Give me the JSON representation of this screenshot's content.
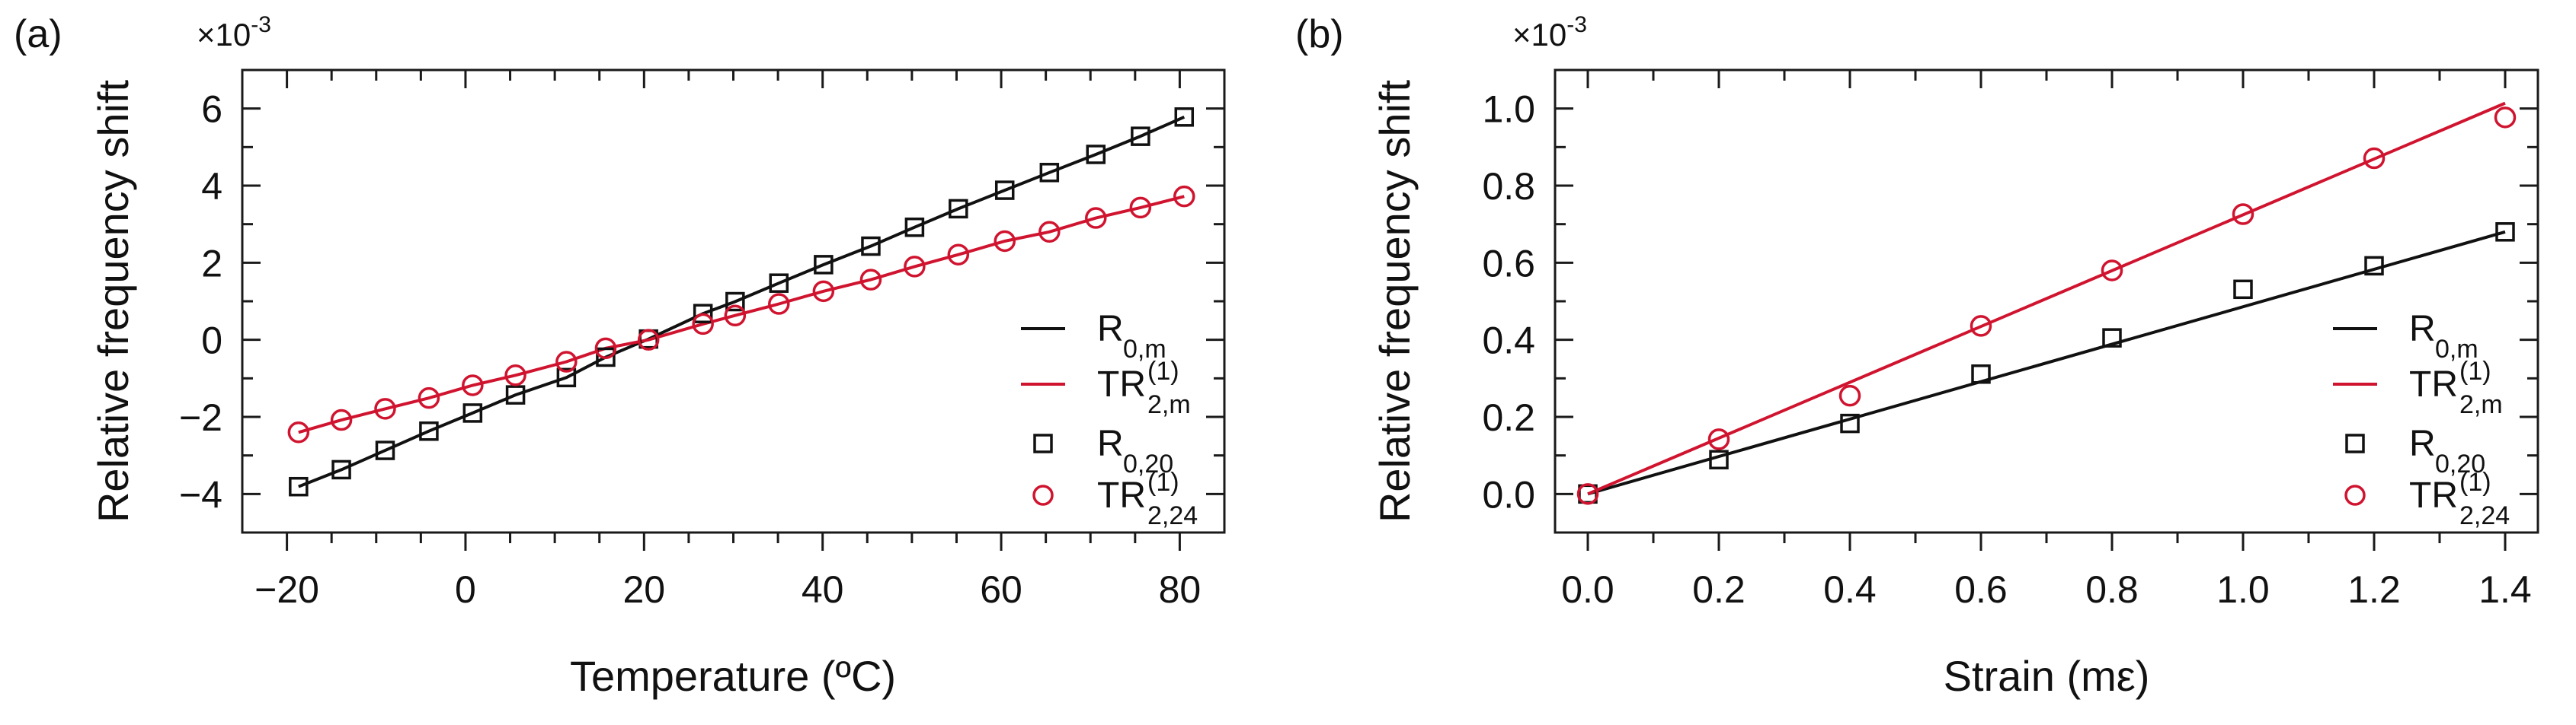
{
  "colors": {
    "black": "#111111",
    "red": "#d0142f",
    "axis": "#1a1a1a"
  },
  "chart_data": [
    {
      "panel": "(a)",
      "type": "scatter",
      "title": "",
      "xlabel": "Temperature (ºC)",
      "ylabel": "Relative frequency shift",
      "y_multiplier": "×10",
      "y_multiplier_exp": "-3",
      "xlim": [
        -25,
        85
      ],
      "ylim": [
        -5,
        7
      ],
      "xticks": [
        -20,
        0,
        20,
        40,
        60,
        80
      ],
      "xtick_labels": [
        "−20",
        "0",
        "20",
        "40",
        "60",
        "80"
      ],
      "x_minor_step": 5,
      "yticks": [
        -4,
        -2,
        0,
        2,
        4,
        6
      ],
      "ytick_labels": [
        "−4",
        "−2",
        "0",
        "2",
        "4",
        "6"
      ],
      "y_minor_step": 1,
      "grid": false,
      "legend_position": "bottom-right",
      "x": [
        -18.7,
        -13.9,
        -9.0,
        -4.1,
        0.8,
        5.6,
        11.3,
        15.7,
        20.5,
        26.6,
        30.2,
        35.1,
        40.1,
        45.4,
        50.3,
        55.2,
        60.4,
        65.4,
        70.6,
        75.6,
        80.5
      ],
      "series": [
        {
          "name": "R_0,m",
          "label_main": "R",
          "label_sub": "0,m",
          "label_sup": "",
          "kind": "line",
          "color": "#111111",
          "values": [
            -3.81,
            -3.37,
            -2.87,
            -2.37,
            -1.9,
            -1.43,
            -0.98,
            -0.45,
            0.02,
            0.68,
            0.99,
            1.47,
            1.95,
            2.43,
            2.92,
            3.4,
            3.88,
            4.34,
            4.81,
            5.28,
            5.78
          ]
        },
        {
          "name": "TR_2,m^(1)",
          "label_main": "TR",
          "label_sub": "2,m",
          "label_sup": "(1)",
          "kind": "line",
          "color": "#d0142f",
          "values": [
            -2.4,
            -2.08,
            -1.79,
            -1.51,
            -1.18,
            -0.92,
            -0.57,
            -0.22,
            0.0,
            0.41,
            0.63,
            0.93,
            1.26,
            1.56,
            1.9,
            2.21,
            2.56,
            2.8,
            3.16,
            3.43,
            3.72
          ]
        },
        {
          "name": "R_0,20",
          "label_main": "R",
          "label_sub": "0,20",
          "label_sup": "",
          "kind": "square",
          "color": "#111111",
          "values": [
            -3.81,
            -3.37,
            -2.87,
            -2.37,
            -1.9,
            -1.43,
            -0.98,
            -0.45,
            0.02,
            0.68,
            0.99,
            1.47,
            1.95,
            2.43,
            2.92,
            3.4,
            3.88,
            4.34,
            4.81,
            5.28,
            5.78
          ]
        },
        {
          "name": "TR_2,24^(1)",
          "label_main": "TR",
          "label_sub": "2,24",
          "label_sup": "(1)",
          "kind": "circle",
          "color": "#d0142f",
          "values": [
            -2.4,
            -2.08,
            -1.79,
            -1.51,
            -1.18,
            -0.92,
            -0.57,
            -0.22,
            0.0,
            0.41,
            0.63,
            0.93,
            1.26,
            1.56,
            1.9,
            2.21,
            2.56,
            2.8,
            3.16,
            3.43,
            3.72
          ]
        }
      ]
    },
    {
      "panel": "(b)",
      "type": "scatter",
      "title": "",
      "xlabel": "Strain (mε)",
      "ylabel": "Relative frequency shift",
      "y_multiplier": "×10",
      "y_multiplier_exp": "-3",
      "xlim": [
        -0.05,
        1.45
      ],
      "ylim": [
        -0.1,
        1.1
      ],
      "xticks": [
        0.0,
        0.2,
        0.4,
        0.6,
        0.8,
        1.0,
        1.2,
        1.4
      ],
      "xtick_labels": [
        "0.0",
        "0.2",
        "0.4",
        "0.6",
        "0.8",
        "1.0",
        "1.2",
        "1.4"
      ],
      "x_minor_step": 0.1,
      "yticks": [
        0.0,
        0.2,
        0.4,
        0.6,
        0.8,
        1.0
      ],
      "ytick_labels": [
        "0.0",
        "0.2",
        "0.4",
        "0.6",
        "0.8",
        "1.0"
      ],
      "y_minor_step": 0.1,
      "grid": false,
      "legend_position": "bottom-right",
      "x": [
        0.0,
        0.2,
        0.4,
        0.6,
        0.8,
        1.0,
        1.2,
        1.4
      ],
      "series": [
        {
          "name": "R_0,m",
          "label_main": "R",
          "label_sub": "0,m",
          "label_sup": "",
          "kind": "line",
          "color": "#111111",
          "line_x": [
            0.0,
            1.4
          ],
          "line_values": [
            0.0,
            0.68
          ]
        },
        {
          "name": "TR_2,m^(1)",
          "label_main": "TR",
          "label_sub": "2,m",
          "label_sup": "(1)",
          "kind": "line",
          "color": "#d0142f",
          "line_x": [
            0.0,
            1.4
          ],
          "line_values": [
            0.0,
            1.014
          ]
        },
        {
          "name": "R_0,20",
          "label_main": "R",
          "label_sub": "0,20",
          "label_sup": "",
          "kind": "square",
          "color": "#111111",
          "values": [
            0.0,
            0.089,
            0.183,
            0.311,
            0.405,
            0.531,
            0.592,
            0.68
          ]
        },
        {
          "name": "TR_2,24^(1)",
          "label_main": "TR",
          "label_sub": "2,24",
          "label_sup": "(1)",
          "kind": "circle",
          "color": "#d0142f",
          "values": [
            0.0,
            0.142,
            0.255,
            0.436,
            0.58,
            0.726,
            0.871,
            0.977
          ]
        }
      ]
    }
  ]
}
